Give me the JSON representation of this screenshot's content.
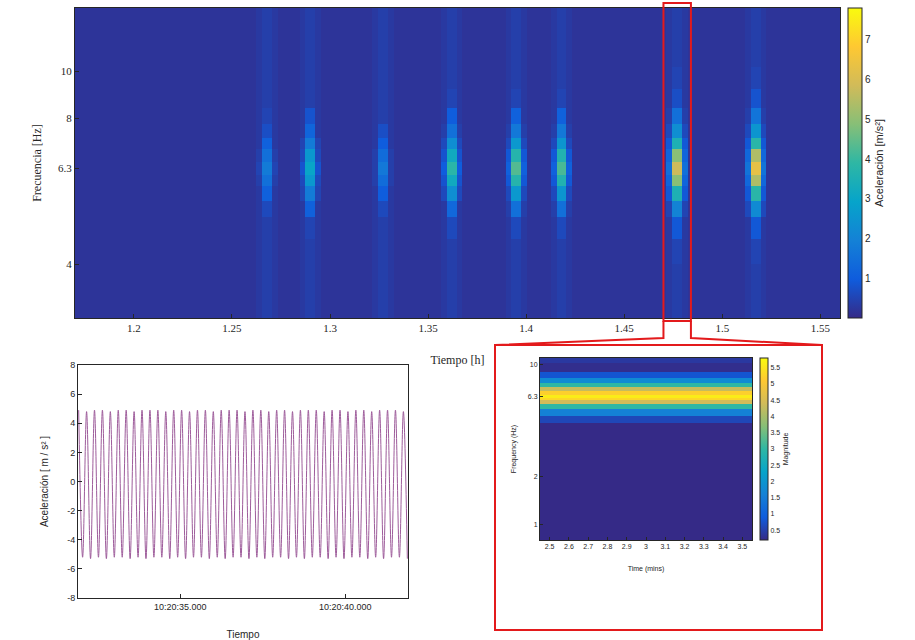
{
  "chart_data": [
    {
      "type": "heatmap",
      "xlabel": "Tiempo [h]",
      "ylabel": "Frecuencia [Hz]",
      "xlim": [
        1.17,
        1.56
      ],
      "xticks": [
        1.2,
        1.25,
        1.3,
        1.35,
        1.4,
        1.45,
        1.5,
        1.55
      ],
      "ylim": [
        3.1,
        13.5
      ],
      "yticks": [
        4,
        6.3,
        8,
        10
      ],
      "log": "y",
      "grid": false,
      "zoom_range": [
        1.47,
        1.484
      ],
      "x_edges": [
        1.17,
        1.2625,
        1.2655,
        1.2705,
        1.2735,
        1.2845,
        1.2875,
        1.2925,
        1.2955,
        1.3215,
        1.3245,
        1.3295,
        1.3325,
        1.3565,
        1.3595,
        1.3645,
        1.3675,
        1.3895,
        1.3925,
        1.3975,
        1.4005,
        1.4125,
        1.4155,
        1.4205,
        1.4235,
        1.4715,
        1.4745,
        1.4795,
        1.4825,
        1.5115,
        1.5145,
        1.5195,
        1.5225,
        1.56
      ],
      "y_edges": [
        3.1,
        3.5,
        4.0,
        4.5,
        5.0,
        5.4,
        5.8,
        6.1,
        6.5,
        6.9,
        7.3,
        7.8,
        8.4,
        9.2,
        10.2,
        11.5,
        13.5
      ],
      "z": [
        [
          0.2,
          0.3,
          0.4,
          0.3,
          0.2,
          0.3,
          0.4,
          0.3,
          0.2,
          0.3,
          0.4,
          0.3,
          0.2,
          0.3,
          0.4,
          0.3,
          0.2,
          0.3,
          0.4,
          0.3,
          0.2,
          0.3,
          0.4,
          0.3,
          0.2,
          0.3,
          0.4,
          0.3,
          0.2,
          0.3,
          0.4,
          0.3,
          0.2
        ],
        [
          0.2,
          0.3,
          0.4,
          0.3,
          0.2,
          0.3,
          0.4,
          0.3,
          0.2,
          0.3,
          0.4,
          0.3,
          0.2,
          0.3,
          0.4,
          0.3,
          0.2,
          0.3,
          0.4,
          0.3,
          0.2,
          0.3,
          0.4,
          0.3,
          0.2,
          0.3,
          0.4,
          0.3,
          0.2,
          0.3,
          0.4,
          0.3,
          0.2
        ],
        [
          0.2,
          0.3,
          0.4,
          0.3,
          0.2,
          0.3,
          0.4,
          0.3,
          0.2,
          0.3,
          0.4,
          0.3,
          0.2,
          0.3,
          0.4,
          0.3,
          0.2,
          0.3,
          0.4,
          0.3,
          0.2,
          0.3,
          0.4,
          0.3,
          0.2,
          0.3,
          0.5,
          0.3,
          0.2,
          0.3,
          0.5,
          0.3,
          0.2
        ],
        [
          0.2,
          0.3,
          0.4,
          0.3,
          0.2,
          0.3,
          0.5,
          0.3,
          0.2,
          0.3,
          0.4,
          0.3,
          0.2,
          0.3,
          0.6,
          0.3,
          0.2,
          0.3,
          0.6,
          0.3,
          0.2,
          0.3,
          0.6,
          0.3,
          0.2,
          0.3,
          0.9,
          0.3,
          0.2,
          0.3,
          0.9,
          0.3,
          0.2
        ],
        [
          0.2,
          0.3,
          0.6,
          0.3,
          0.2,
          0.3,
          1.1,
          0.3,
          0.2,
          0.3,
          0.6,
          0.3,
          0.2,
          0.3,
          1.3,
          0.3,
          0.2,
          0.4,
          1.5,
          0.4,
          0.2,
          0.4,
          1.5,
          0.4,
          0.2,
          0.5,
          2.0,
          0.5,
          0.2,
          0.6,
          2.2,
          0.6,
          0.2
        ],
        [
          0.2,
          0.3,
          1.1,
          0.3,
          0.2,
          0.5,
          1.8,
          0.5,
          0.2,
          0.3,
          1.0,
          0.3,
          0.2,
          0.6,
          2.3,
          0.6,
          0.2,
          0.6,
          2.6,
          0.6,
          0.2,
          0.6,
          2.5,
          0.6,
          0.2,
          0.9,
          3.5,
          0.9,
          0.2,
          0.9,
          3.8,
          0.9,
          0.2
        ],
        [
          0.2,
          0.4,
          1.5,
          0.4,
          0.2,
          0.6,
          2.6,
          0.6,
          0.2,
          0.4,
          1.4,
          0.4,
          0.2,
          0.8,
          3.2,
          0.8,
          0.2,
          0.9,
          3.7,
          0.9,
          0.2,
          0.9,
          3.6,
          0.9,
          0.2,
          1.2,
          4.9,
          1.2,
          0.2,
          1.3,
          5.4,
          1.3,
          0.2
        ],
        [
          0.2,
          0.5,
          1.8,
          0.5,
          0.2,
          0.8,
          3.0,
          0.8,
          0.2,
          0.4,
          1.7,
          0.4,
          0.2,
          1.0,
          3.8,
          1.0,
          0.2,
          1.1,
          4.3,
          1.1,
          0.2,
          1.1,
          4.2,
          1.1,
          0.2,
          1.5,
          5.8,
          1.5,
          0.2,
          1.6,
          6.3,
          1.6,
          0.2
        ],
        [
          0.2,
          0.4,
          1.5,
          0.4,
          0.2,
          0.6,
          2.6,
          0.6,
          0.2,
          0.4,
          1.4,
          0.4,
          0.2,
          0.8,
          3.2,
          0.8,
          0.2,
          0.9,
          3.7,
          0.9,
          0.2,
          0.9,
          3.6,
          0.9,
          0.2,
          1.2,
          4.9,
          1.2,
          0.2,
          1.3,
          5.4,
          1.3,
          0.2
        ],
        [
          0.2,
          0.3,
          1.1,
          0.3,
          0.2,
          0.5,
          1.8,
          0.5,
          0.2,
          0.3,
          1.0,
          0.3,
          0.2,
          0.6,
          2.3,
          0.6,
          0.2,
          0.6,
          2.6,
          0.6,
          0.2,
          0.6,
          2.5,
          0.6,
          0.2,
          0.9,
          3.5,
          0.9,
          0.2,
          0.9,
          3.8,
          0.9,
          0.2
        ],
        [
          0.2,
          0.3,
          0.7,
          0.3,
          0.2,
          0.3,
          1.2,
          0.3,
          0.2,
          0.3,
          0.7,
          0.3,
          0.2,
          0.4,
          1.5,
          0.4,
          0.2,
          0.4,
          1.7,
          0.4,
          0.2,
          0.4,
          1.7,
          0.4,
          0.2,
          0.6,
          2.3,
          0.6,
          0.2,
          0.6,
          2.5,
          0.6,
          0.2
        ],
        [
          0.2,
          0.3,
          0.5,
          0.3,
          0.2,
          0.3,
          0.8,
          0.3,
          0.2,
          0.3,
          0.4,
          0.3,
          0.2,
          0.3,
          1.0,
          0.3,
          0.2,
          0.3,
          1.1,
          0.3,
          0.2,
          0.3,
          1.1,
          0.3,
          0.2,
          0.4,
          1.5,
          0.4,
          0.2,
          0.4,
          1.6,
          0.4,
          0.2
        ],
        [
          0.2,
          0.3,
          0.4,
          0.3,
          0.2,
          0.3,
          0.4,
          0.3,
          0.2,
          0.3,
          0.4,
          0.3,
          0.2,
          0.3,
          0.5,
          0.3,
          0.2,
          0.3,
          0.5,
          0.3,
          0.2,
          0.3,
          0.5,
          0.3,
          0.2,
          0.3,
          0.7,
          0.3,
          0.2,
          0.3,
          0.8,
          0.3,
          0.2
        ],
        [
          0.2,
          0.3,
          0.4,
          0.3,
          0.2,
          0.3,
          0.4,
          0.3,
          0.2,
          0.3,
          0.4,
          0.3,
          0.2,
          0.3,
          0.4,
          0.3,
          0.2,
          0.3,
          0.4,
          0.3,
          0.2,
          0.3,
          0.4,
          0.3,
          0.2,
          0.3,
          0.5,
          0.3,
          0.2,
          0.3,
          0.5,
          0.3,
          0.2
        ],
        [
          0.2,
          0.3,
          0.4,
          0.3,
          0.2,
          0.3,
          0.4,
          0.3,
          0.2,
          0.3,
          0.4,
          0.3,
          0.2,
          0.3,
          0.4,
          0.3,
          0.2,
          0.3,
          0.4,
          0.3,
          0.2,
          0.3,
          0.4,
          0.3,
          0.2,
          0.3,
          0.4,
          0.3,
          0.2,
          0.3,
          0.4,
          0.3,
          0.2
        ],
        [
          0.2,
          0.3,
          0.4,
          0.3,
          0.2,
          0.3,
          0.4,
          0.3,
          0.2,
          0.3,
          0.4,
          0.3,
          0.2,
          0.3,
          0.4,
          0.3,
          0.2,
          0.3,
          0.4,
          0.3,
          0.2,
          0.3,
          0.4,
          0.3,
          0.2,
          0.3,
          0.4,
          0.3,
          0.2,
          0.3,
          0.4,
          0.3,
          0.2
        ]
      ],
      "colorbar": {
        "title": "Aceleración [m/s²]",
        "range": [
          0,
          7.8
        ],
        "ticks": [
          1,
          2,
          3,
          4,
          5,
          6,
          7
        ]
      }
    },
    {
      "type": "line",
      "xlabel": "Tiempo",
      "ylabel": "Aceleración [ m / s² ]",
      "xlim": [
        "10:20:31.900",
        "10:20:41.900"
      ],
      "xticks": [
        "10:20:35.000",
        "10:20:40.000"
      ],
      "ylim": [
        -8,
        8
      ],
      "yticks": [
        -8,
        -6,
        -4,
        -2,
        0,
        2,
        4,
        6,
        8
      ],
      "grid": false,
      "color": "#9e5c9b",
      "x": [
        "10:20:31.920",
        "10:20:32.040",
        "10:20:32.160",
        "10:20:32.280",
        "10:20:32.400",
        "10:20:32.520",
        "10:20:32.640",
        "10:20:32.760",
        "10:20:32.880",
        "10:20:33.000",
        "10:20:33.120",
        "10:20:33.240",
        "10:20:33.360",
        "10:20:33.480",
        "10:20:33.600",
        "10:20:33.720",
        "10:20:33.840",
        "10:20:33.960",
        "10:20:34.080",
        "10:20:34.200",
        "10:20:34.320",
        "10:20:34.440",
        "10:20:34.560",
        "10:20:34.680",
        "10:20:34.800",
        "10:20:34.920",
        "10:20:35.040",
        "10:20:35.160",
        "10:20:35.280",
        "10:20:35.400",
        "10:20:35.520",
        "10:20:35.640",
        "10:20:35.760",
        "10:20:35.880",
        "10:20:36.000",
        "10:20:36.120",
        "10:20:36.240",
        "10:20:36.360",
        "10:20:36.480",
        "10:20:36.600",
        "10:20:36.720",
        "10:20:36.840",
        "10:20:36.960",
        "10:20:37.080",
        "10:20:37.200",
        "10:20:37.320",
        "10:20:37.440",
        "10:20:37.560",
        "10:20:37.680",
        "10:20:37.800",
        "10:20:37.920",
        "10:20:38.040",
        "10:20:38.160",
        "10:20:38.280",
        "10:20:38.400",
        "10:20:38.520",
        "10:20:38.640",
        "10:20:38.760",
        "10:20:38.880",
        "10:20:39.000",
        "10:20:39.120",
        "10:20:39.240",
        "10:20:39.360",
        "10:20:39.480",
        "10:20:39.600",
        "10:20:39.720",
        "10:20:39.840",
        "10:20:39.960",
        "10:20:40.080",
        "10:20:40.200",
        "10:20:40.320",
        "10:20:40.440",
        "10:20:40.560",
        "10:20:40.680",
        "10:20:40.800",
        "10:20:40.920",
        "10:20:41.040",
        "10:20:41.160",
        "10:20:41.280",
        "10:20:41.400",
        "10:20:41.520",
        "10:20:41.640",
        "10:20:41.760",
        "10:20:41.880"
      ],
      "values": [
        4.9,
        -5.2,
        4.8,
        -5.3,
        4.9,
        -5.2,
        4.9,
        -5.3,
        4.8,
        -5.2,
        4.9,
        -5.2,
        4.9,
        -5.3,
        4.8,
        -5.2,
        4.9,
        -5.3,
        4.9,
        -5.2,
        4.9,
        -5.2,
        4.8,
        -5.3,
        4.9,
        -5.2,
        4.9,
        -5.3,
        4.8,
        -5.2,
        4.9,
        -5.2,
        4.9,
        -5.3,
        4.8,
        -5.2,
        4.9,
        -5.3,
        4.9,
        -5.2,
        4.9,
        -5.2,
        4.8,
        -5.3,
        4.9,
        -5.2,
        4.9,
        -5.3,
        4.8,
        -5.2,
        4.9,
        -5.2,
        4.9,
        -5.3,
        4.8,
        -5.2,
        4.9,
        -5.3,
        4.9,
        -5.2,
        4.9,
        -5.2,
        4.8,
        -5.3,
        4.9,
        -5.2,
        4.9,
        -5.3,
        4.8,
        -5.2,
        4.9,
        -5.2,
        4.9,
        -5.3,
        4.8,
        -5.2,
        4.9,
        -5.3,
        4.9,
        -5.2,
        4.9,
        -5.2,
        4.8,
        -5.3
      ]
    },
    {
      "type": "heatmap",
      "xlabel": "Time (mins)",
      "ylabel": "Frequency (Hz)",
      "xlim": [
        2.45,
        3.55
      ],
      "xticks": [
        2.5,
        2.6,
        2.7,
        2.8,
        2.9,
        3,
        3.1,
        3.2,
        3.3,
        3.4,
        3.5
      ],
      "ylim": [
        0.8,
        11
      ],
      "yticks": [
        1,
        2,
        6.3,
        10
      ],
      "log": "y",
      "grid": false,
      "x_edges": [
        2.45,
        3.0,
        3.55
      ],
      "y_edges": [
        0.8,
        4.3,
        4.8,
        5.3,
        5.7,
        6.0,
        6.15,
        6.5,
        6.8,
        7.2,
        7.7,
        8.3,
        9.0,
        10.2,
        11
      ],
      "z": [
        [
          0.2,
          0.2
        ],
        [
          0.6,
          0.6
        ],
        [
          1.6,
          1.6
        ],
        [
          3.0,
          3.0
        ],
        [
          4.4,
          4.4
        ],
        [
          5.3,
          5.3
        ],
        [
          5.6,
          5.6
        ],
        [
          5.2,
          5.2
        ],
        [
          4.3,
          4.3
        ],
        [
          3.0,
          3.0
        ],
        [
          1.8,
          1.8
        ],
        [
          0.8,
          0.8
        ],
        [
          0.25,
          0.25
        ],
        [
          0.4,
          0.4
        ]
      ],
      "colorbar": {
        "title": "Magnitude",
        "range": [
          0.2,
          5.8
        ],
        "ticks": [
          0.5,
          1,
          1.5,
          2,
          2.5,
          3,
          3.5,
          4,
          4.5,
          5,
          5.5
        ]
      }
    }
  ]
}
